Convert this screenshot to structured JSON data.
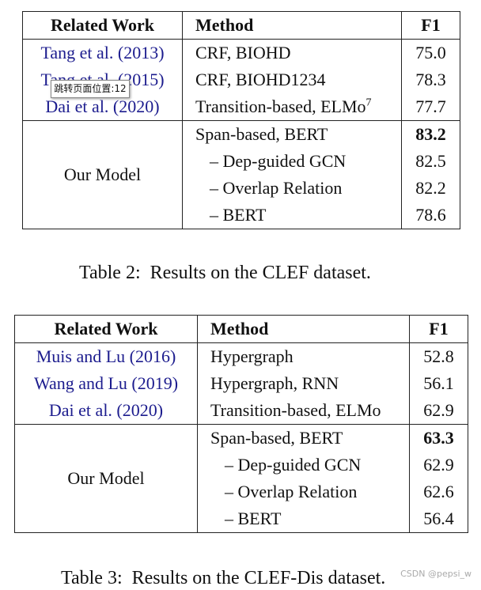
{
  "tables": [
    {
      "header": [
        "Related Work",
        "Method",
        "F1"
      ],
      "baselines": [
        {
          "work": "Tang et al. (2013)",
          "method": "CRF, BIOHD",
          "f1": "75.0"
        },
        {
          "work": "Tang et al. (2015)",
          "method": "CRF, BIOHD1234",
          "f1": "78.3"
        },
        {
          "work": "Dai et al. (2020)",
          "method": "Transition-based, ELMo",
          "note": "7",
          "f1": "77.7"
        }
      ],
      "ours": {
        "label": "Our Model",
        "variants": [
          {
            "method": "Span-based, BERT",
            "f1": "83.2"
          },
          {
            "method": "– Dep-guided GCN",
            "f1": "82.5"
          },
          {
            "method": "– Overlap Relation",
            "f1": "82.2"
          },
          {
            "method": "– BERT",
            "f1": "78.6"
          }
        ]
      },
      "caption": "Table 2:  Results on the CLEF dataset."
    },
    {
      "header": [
        "Related Work",
        "Method",
        "F1"
      ],
      "baselines": [
        {
          "work": "Muis and Lu (2016)",
          "method": "Hypergraph",
          "f1": "52.8"
        },
        {
          "work": "Wang and Lu (2019)",
          "method": "Hypergraph, RNN",
          "f1": "56.1"
        },
        {
          "work": "Dai et al. (2020)",
          "method": "Transition-based, ELMo",
          "f1": "62.9"
        }
      ],
      "ours": {
        "label": "Our Model",
        "variants": [
          {
            "method": "Span-based, BERT",
            "f1": "63.3"
          },
          {
            "method": "– Dep-guided GCN",
            "f1": "62.9"
          },
          {
            "method": "– Overlap Relation",
            "f1": "62.6"
          },
          {
            "method": "– BERT",
            "f1": "56.4"
          }
        ]
      },
      "caption": "Table 3:  Results on the CLEF-Dis dataset."
    }
  ],
  "tooltip": "跳转页面位置:12",
  "watermark": "CSDN @pepsi_w"
}
